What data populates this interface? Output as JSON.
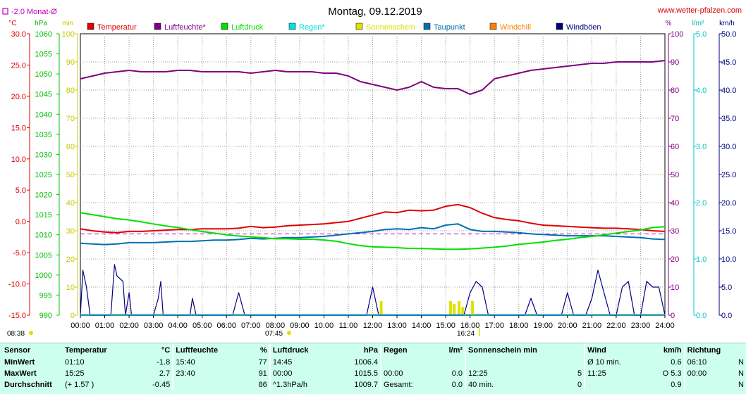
{
  "header": {
    "title": "Montag, 09.12.2019",
    "website": "www.wetter-pfalzen.com",
    "monat_label": "-2.0 Monat-Ø",
    "sunrise": "08:38",
    "sunset_marker": "07:45",
    "sunset_label": "16:24"
  },
  "colors": {
    "temperature": "#e00000",
    "humidity": "#800080",
    "pressure": "#00e000",
    "rain": "#00e0e0",
    "sunshine": "#e0e000",
    "dewpoint": "#0070b0",
    "windchill": "#ff8000",
    "gusts": "#000080"
  },
  "legend": [
    {
      "label": "Temperatur",
      "color": "#e00000"
    },
    {
      "label": "Luftfeuchte*",
      "color": "#800080"
    },
    {
      "label": "Luftdruck",
      "color": "#00e000"
    },
    {
      "label": "Regen*",
      "color": "#00e0e0"
    },
    {
      "label": "Sonnenschein",
      "color": "#e0e000"
    },
    {
      "label": "Taupunkt",
      "color": "#0070b0"
    },
    {
      "label": "Windchill",
      "color": "#ff8000"
    },
    {
      "label": "Windböen",
      "color": "#000080"
    }
  ],
  "chart_data": {
    "type": "line",
    "title": "Montag, 09.12.2019",
    "x_ticks": [
      "00:00",
      "01:00",
      "02:00",
      "03:00",
      "04:00",
      "05:00",
      "06:00",
      "07:00",
      "08:00",
      "09:00",
      "10:00",
      "11:00",
      "12:00",
      "13:00",
      "14:00",
      "15:00",
      "16:00",
      "17:00",
      "18:00",
      "19:00",
      "20:00",
      "21:00",
      "22:00",
      "23:00",
      "24:00"
    ],
    "axes": {
      "temperature": {
        "unit": "°C",
        "range": [
          -15,
          30
        ],
        "ticks": [
          "30.0",
          "25.0",
          "20.0",
          "15.0",
          "10.0",
          "5.0",
          "0.0",
          "-5.0",
          "-10.0",
          "-15.0"
        ]
      },
      "pressure": {
        "unit": "hPa",
        "range": [
          990,
          1060
        ],
        "ticks": [
          "1060",
          "1055",
          "1050",
          "1045",
          "1040",
          "1035",
          "1030",
          "1025",
          "1020",
          "1015",
          "1010",
          "1005",
          "1000",
          "995",
          "990"
        ]
      },
      "minutes": {
        "unit": "min",
        "range": [
          0,
          100
        ],
        "ticks": [
          "100",
          "90",
          "80",
          "70",
          "60",
          "50",
          "40",
          "30",
          "20",
          "10",
          "0"
        ]
      },
      "humidity": {
        "unit": "%",
        "range": [
          0,
          100
        ],
        "ticks": [
          "100",
          "90",
          "80",
          "70",
          "60",
          "50",
          "40",
          "30",
          "20",
          "10",
          "0"
        ]
      },
      "rain": {
        "unit": "l/m²",
        "range": [
          0,
          5
        ],
        "ticks": [
          "5.0",
          "4.0",
          "3.0",
          "2.0",
          "1.0",
          "0.0"
        ]
      },
      "wind": {
        "unit": "km/h",
        "range": [
          0,
          50
        ],
        "ticks": [
          "50.0",
          "45.0",
          "40.0",
          "35.0",
          "30.0",
          "25.0",
          "20.0",
          "15.0",
          "10.0",
          "5.0",
          "0.0"
        ]
      }
    },
    "reference_line": {
      "name": "Monat-Ø",
      "value": -2.0
    },
    "series": [
      {
        "name": "Luftfeuchte*",
        "axis": "humidity",
        "color": "#800080",
        "x": [
          0,
          0.5,
          1,
          1.5,
          2,
          2.5,
          3,
          3.5,
          4,
          4.5,
          5,
          5.5,
          6,
          6.5,
          7,
          7.5,
          8,
          8.5,
          9,
          9.5,
          10,
          10.5,
          11,
          11.5,
          12,
          12.5,
          13,
          13.5,
          14,
          14.5,
          15,
          15.5,
          16,
          16.5,
          17,
          17.5,
          18,
          18.5,
          19,
          19.5,
          20,
          20.5,
          21,
          21.5,
          22,
          22.5,
          23,
          23.5,
          24
        ],
        "y": [
          84,
          85,
          86,
          86.5,
          87,
          86.5,
          86.5,
          86.5,
          87,
          87,
          86.5,
          86.5,
          86.5,
          86.5,
          86,
          86.5,
          87,
          86.5,
          86.5,
          86.5,
          86,
          86,
          85,
          83,
          82,
          81,
          80,
          81,
          83,
          81,
          80.5,
          80.5,
          78.5,
          80,
          84,
          85,
          86,
          87,
          87.5,
          88,
          88.5,
          89,
          89.5,
          89.5,
          90,
          90,
          90,
          90,
          90.5
        ]
      },
      {
        "name": "Temperatur",
        "axis": "temperature",
        "color": "#e00000",
        "x": [
          0,
          0.5,
          1,
          1.5,
          2,
          2.5,
          3,
          3.5,
          4,
          4.5,
          5,
          5.5,
          6,
          6.5,
          7,
          7.5,
          8,
          8.5,
          9,
          9.5,
          10,
          10.5,
          11,
          11.5,
          12,
          12.5,
          13,
          13.5,
          14,
          14.5,
          15,
          15.5,
          16,
          16.5,
          17,
          17.5,
          18,
          18.5,
          19,
          19.5,
          20,
          20.5,
          21,
          21.5,
          22,
          22.5,
          23,
          23.5,
          24
        ],
        "y": [
          -1.2,
          -1.5,
          -1.7,
          -1.8,
          -1.6,
          -1.6,
          -1.5,
          -1.4,
          -1.3,
          -1.3,
          -1.2,
          -1.2,
          -1.2,
          -1.1,
          -0.8,
          -1.0,
          -0.9,
          -0.7,
          -0.6,
          -0.5,
          -0.4,
          -0.2,
          0.0,
          0.5,
          1.0,
          1.5,
          1.4,
          1.8,
          1.7,
          1.8,
          2.4,
          2.7,
          2.2,
          1.3,
          0.6,
          0.3,
          0.1,
          -0.3,
          -0.6,
          -0.7,
          -0.8,
          -0.9,
          -1.0,
          -1.1,
          -1.1,
          -1.2,
          -1.3,
          -1.5,
          -1.6
        ]
      },
      {
        "name": "Taupunkt",
        "axis": "temperature",
        "color": "#0070b0",
        "x": [
          0,
          0.5,
          1,
          1.5,
          2,
          2.5,
          3,
          3.5,
          4,
          4.5,
          5,
          5.5,
          6,
          6.5,
          7,
          7.5,
          8,
          8.5,
          9,
          9.5,
          10,
          10.5,
          11,
          11.5,
          12,
          12.5,
          13,
          13.5,
          14,
          14.5,
          15,
          15.5,
          16,
          16.5,
          17,
          17.5,
          18,
          18.5,
          19,
          19.5,
          20,
          20.5,
          21,
          21.5,
          22,
          22.5,
          23,
          23.5,
          24
        ],
        "y": [
          -3.5,
          -3.6,
          -3.7,
          -3.6,
          -3.4,
          -3.4,
          -3.4,
          -3.3,
          -3.2,
          -3.2,
          -3.1,
          -3.0,
          -3.0,
          -2.9,
          -2.7,
          -2.8,
          -2.7,
          -2.6,
          -2.6,
          -2.5,
          -2.4,
          -2.2,
          -2.0,
          -1.8,
          -1.6,
          -1.3,
          -1.2,
          -1.3,
          -1.0,
          -1.2,
          -0.6,
          -0.4,
          -1.3,
          -1.6,
          -1.6,
          -1.7,
          -1.8,
          -2.0,
          -2.1,
          -2.2,
          -2.3,
          -2.3,
          -2.3,
          -2.3,
          -2.4,
          -2.5,
          -2.6,
          -2.8,
          -2.9
        ]
      },
      {
        "name": "Luftdruck",
        "axis": "pressure",
        "color": "#00e000",
        "x": [
          0,
          0.5,
          1,
          1.5,
          2,
          2.5,
          3,
          3.5,
          4,
          4.5,
          5,
          5.5,
          6,
          6.5,
          7,
          7.5,
          8,
          8.5,
          9,
          9.5,
          10,
          10.5,
          11,
          11.5,
          12,
          12.5,
          13,
          13.5,
          14,
          14.5,
          15,
          15.5,
          16,
          16.5,
          17,
          17.5,
          18,
          18.5,
          19,
          19.5,
          20,
          20.5,
          21,
          21.5,
          22,
          22.5,
          23,
          23.5,
          24
        ],
        "y": [
          1015.5,
          1015.0,
          1014.5,
          1014.0,
          1013.7,
          1013.2,
          1012.7,
          1012.2,
          1011.8,
          1011.3,
          1010.8,
          1010.4,
          1010.0,
          1009.7,
          1009.5,
          1009.3,
          1009.0,
          1009.0,
          1008.9,
          1008.9,
          1008.7,
          1008.4,
          1007.8,
          1007.3,
          1007.0,
          1006.9,
          1006.8,
          1006.6,
          1006.6,
          1006.5,
          1006.4,
          1006.4,
          1006.5,
          1006.7,
          1006.9,
          1007.2,
          1007.6,
          1007.9,
          1008.2,
          1008.6,
          1008.9,
          1009.3,
          1009.6,
          1010.0,
          1010.4,
          1010.8,
          1011.2,
          1011.8,
          1012.0
        ]
      },
      {
        "name": "Windböen",
        "axis": "wind",
        "color": "#000080",
        "x": [
          0,
          0.1,
          0.25,
          0.4,
          0.5,
          0.75,
          1.0,
          1.25,
          1.4,
          1.5,
          1.75,
          1.85,
          2.0,
          2.1,
          2.5,
          2.6,
          2.75,
          3.0,
          3.2,
          3.3,
          3.4,
          3.5,
          3.75,
          4.0,
          4.25,
          4.5,
          4.6,
          4.75,
          5.0,
          5.25,
          5.5,
          5.75,
          6.0,
          6.25,
          6.5,
          6.75,
          7.0,
          7.25,
          7.5,
          7.75,
          8.0,
          8.25,
          8.5,
          8.75,
          9.0,
          9.25,
          9.5,
          9.75,
          10.0,
          10.25,
          10.5,
          10.75,
          11.0,
          11.25,
          11.5,
          11.75,
          12.0,
          12.25,
          12.5,
          12.75,
          13.0,
          13.25,
          13.5,
          13.75,
          14.0,
          14.25,
          14.5,
          14.75,
          15.0,
          15.25,
          15.5,
          15.75,
          16.0,
          16.25,
          16.5,
          16.75,
          17.0,
          17.25,
          17.5,
          17.75,
          18.0,
          18.25,
          18.5,
          18.75,
          19.0,
          19.25,
          19.5,
          19.75,
          20.0,
          20.25,
          20.5,
          20.75,
          21.0,
          21.25,
          21.5,
          21.75,
          22.0,
          22.25,
          22.5,
          22.75,
          23.0,
          23.25,
          23.5,
          23.75,
          24.0
        ],
        "y": [
          0,
          8,
          5,
          0,
          0,
          0,
          0,
          0,
          9,
          7,
          6,
          0,
          4,
          0,
          0,
          0,
          0,
          0,
          3,
          6,
          0,
          0,
          0,
          0,
          0,
          0,
          3,
          0,
          0,
          0,
          0,
          0,
          0,
          0,
          4,
          0,
          0,
          0,
          0,
          0,
          0,
          0,
          0,
          0,
          0,
          0,
          0,
          0,
          0,
          0,
          0,
          0,
          0,
          0,
          0,
          0,
          5,
          0,
          0,
          0,
          0,
          0,
          0,
          0,
          0,
          0,
          0,
          0,
          0,
          0,
          0,
          0,
          4,
          6,
          5,
          0,
          0,
          0,
          0,
          0,
          0,
          0,
          3,
          0,
          0,
          0,
          0,
          0,
          4,
          0,
          0,
          0,
          3,
          8,
          4,
          0,
          0,
          5,
          6,
          0,
          0,
          6,
          5,
          5,
          0
        ]
      }
    ],
    "sunshine_bars": [
      {
        "x": 12.35,
        "minutes": 5
      },
      {
        "x": 15.2,
        "minutes": 5
      },
      {
        "x": 15.35,
        "minutes": 4
      },
      {
        "x": 15.55,
        "minutes": 5
      },
      {
        "x": 15.7,
        "minutes": 3
      },
      {
        "x": 16.1,
        "minutes": 5
      }
    ]
  },
  "stats": {
    "header": {
      "sensor": "Sensor",
      "temp_title": "Temperatur",
      "temp_unit": "°C",
      "hum_title": "Luftfeuchte",
      "hum_unit": "%",
      "press_title": "Luftdruck",
      "press_unit": "hPa",
      "rain_title": "Regen",
      "rain_unit": "l/m²",
      "sun_title": "Sonnenschein min",
      "wind_title": "Wind",
      "wind_unit": "km/h",
      "dir_title": "Richtung"
    },
    "rows": [
      {
        "label": "MinWert",
        "temp_time": "01:10",
        "temp_val": "-1.8",
        "hum_time": "15:40",
        "hum_val": "77",
        "press_time": "14:45",
        "press_val": "1006.4",
        "rain_time": "",
        "rain_val": "",
        "sun_time": "",
        "sun_val": "",
        "wind_time": "Ø 10 min.",
        "wind_val": "0.6",
        "dir_time": "06:10",
        "dir_val": "N"
      },
      {
        "label": "MaxWert",
        "temp_time": "15:25",
        "temp_val": "2.7",
        "hum_time": "23:40",
        "hum_val": "91",
        "press_time": "00:00",
        "press_val": "1015.5",
        "rain_time": "00:00",
        "rain_val": "0.0",
        "sun_time": "12:25",
        "sun_val": "5",
        "wind_time": "11:25",
        "wind_val": "O 5.3",
        "dir_time": "00:00",
        "dir_val": "N"
      },
      {
        "label": "Durchschnitt",
        "temp_time": "(+ 1.57 )",
        "temp_val": "-0.45",
        "hum_time": "",
        "hum_val": "86",
        "press_time": "^1.3hPa/h",
        "press_val": "1009.7",
        "rain_time": "Gesamt:",
        "rain_val": "0.0",
        "sun_time": "40 min.",
        "sun_val": "0",
        "wind_time": "",
        "wind_val": "0.9",
        "dir_time": "",
        "dir_val": "N"
      }
    ]
  }
}
